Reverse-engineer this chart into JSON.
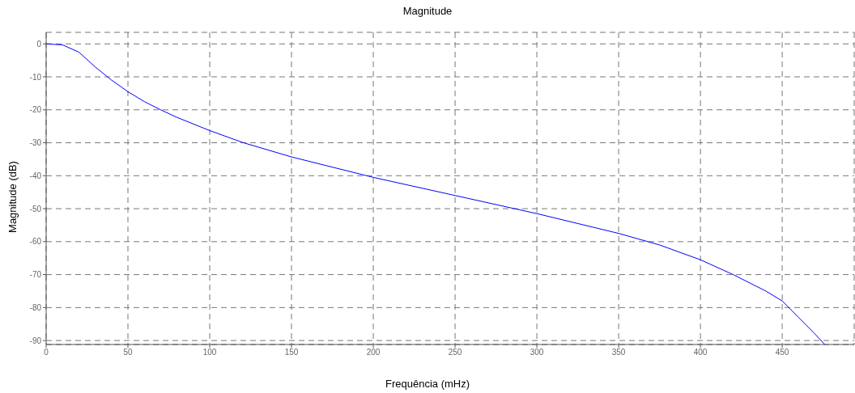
{
  "chart_data": {
    "type": "line",
    "title": "Magnitude",
    "xlabel": "Frequência (mHz)",
    "ylabel": "Magnitude (dB)",
    "x": [
      0,
      10,
      20,
      30,
      40,
      50,
      60,
      70,
      80,
      100,
      120,
      150,
      200,
      250,
      300,
      350,
      375,
      400,
      420,
      440,
      450,
      460,
      470,
      476
    ],
    "series": [
      {
        "color": "#0000ff",
        "values": [
          0,
          -0.3,
          -2.5,
          -7,
          -11,
          -14.5,
          -17.5,
          -20,
          -22.3,
          -26.3,
          -29.9,
          -34.3,
          -40.5,
          -46,
          -51.5,
          -57.5,
          -61,
          -65.5,
          -70,
          -75,
          -78,
          -83,
          -88,
          -91.2
        ]
      }
    ],
    "xlim": [
      0,
      494
    ],
    "xticks": [
      0,
      50,
      100,
      150,
      200,
      250,
      300,
      350,
      400,
      450
    ],
    "ylim": [
      -91.2,
      3.5
    ],
    "yticks": [
      -90,
      -80,
      -70,
      -60,
      -50,
      -40,
      -30,
      -20,
      -10,
      0
    ],
    "grid": true,
    "line_style": "solid"
  }
}
